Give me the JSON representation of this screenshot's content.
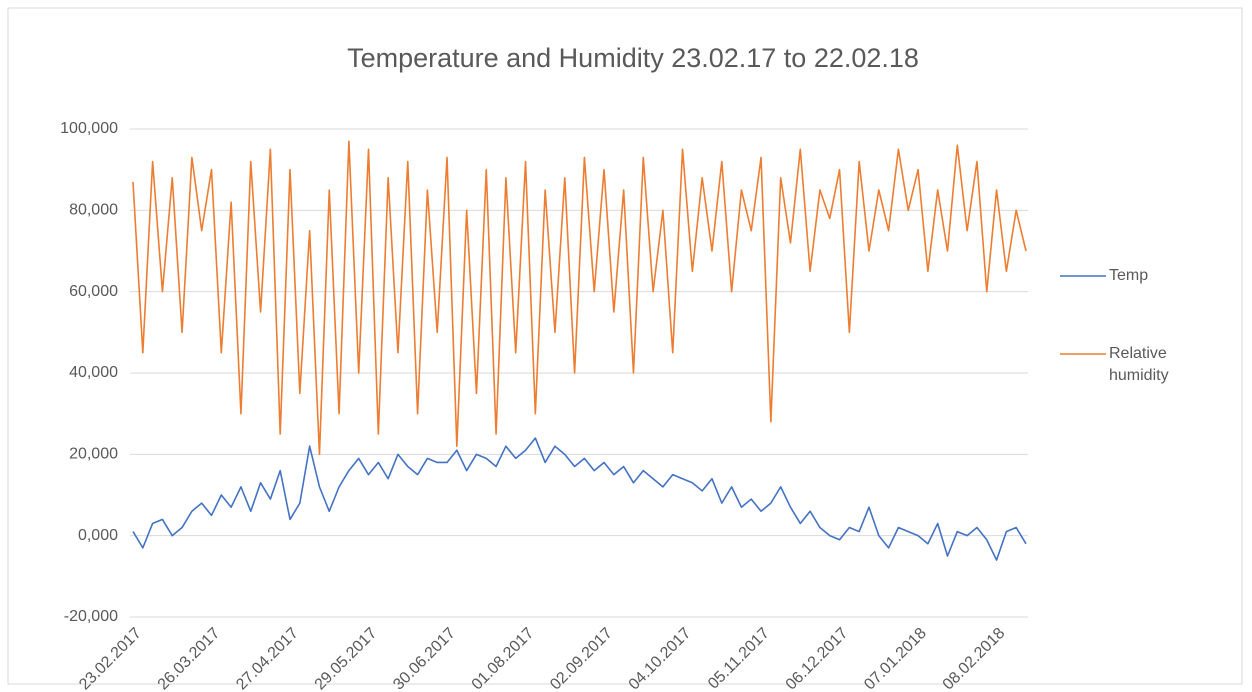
{
  "chart_data": {
    "type": "line",
    "title": "Temperature and Humidity 23.02.17 to 22.02.18",
    "categories": [
      "23.02.2017",
      null,
      null,
      null,
      null,
      null,
      null,
      null,
      "26.03.2017",
      null,
      null,
      null,
      null,
      null,
      null,
      null,
      "27.04.2017",
      null,
      null,
      null,
      null,
      null,
      null,
      null,
      "29.05.2017",
      null,
      null,
      null,
      null,
      null,
      null,
      null,
      "30.06.2017",
      null,
      null,
      null,
      null,
      null,
      null,
      null,
      "01.08.2017",
      null,
      null,
      null,
      null,
      null,
      null,
      null,
      "02.09.2017",
      null,
      null,
      null,
      null,
      null,
      null,
      null,
      "04.10.2017",
      null,
      null,
      null,
      null,
      null,
      null,
      null,
      "05.11.2017",
      null,
      null,
      null,
      null,
      null,
      null,
      null,
      "06.12.2017",
      null,
      null,
      null,
      null,
      null,
      null,
      null,
      "07.01.2018",
      null,
      null,
      null,
      null,
      null,
      null,
      null,
      "08.02.2018",
      null,
      null,
      null
    ],
    "series": [
      {
        "name": "Temp",
        "color": "#4472c4",
        "values": [
          1,
          -3,
          3,
          4,
          0,
          2,
          6,
          8,
          5,
          10,
          7,
          12,
          6,
          13,
          9,
          16,
          4,
          8,
          22,
          12,
          6,
          12,
          16,
          19,
          15,
          18,
          14,
          20,
          17,
          15,
          19,
          18,
          18,
          21,
          16,
          20,
          19,
          17,
          22,
          19,
          21,
          24,
          18,
          22,
          20,
          17,
          19,
          16,
          18,
          15,
          17,
          13,
          16,
          14,
          12,
          15,
          14,
          13,
          11,
          14,
          8,
          12,
          7,
          9,
          6,
          8,
          12,
          7,
          3,
          6,
          2,
          0,
          -1,
          2,
          1,
          7,
          0,
          -3,
          2,
          1,
          0,
          -2,
          3,
          -5,
          1,
          0,
          2,
          -1,
          -6,
          1,
          2,
          -2
        ]
      },
      {
        "name": "Relative humidity",
        "color": "#ed7d31",
        "values": [
          87,
          45,
          92,
          60,
          88,
          50,
          93,
          75,
          90,
          45,
          82,
          30,
          92,
          55,
          95,
          25,
          90,
          35,
          75,
          20,
          85,
          30,
          97,
          40,
          95,
          25,
          88,
          45,
          92,
          30,
          85,
          50,
          93,
          22,
          80,
          35,
          90,
          25,
          88,
          45,
          92,
          30,
          85,
          50,
          88,
          40,
          93,
          60,
          90,
          55,
          85,
          40,
          93,
          60,
          80,
          45,
          95,
          65,
          88,
          70,
          92,
          60,
          85,
          75,
          93,
          28,
          88,
          72,
          95,
          65,
          85,
          78,
          90,
          50,
          92,
          70,
          85,
          75,
          95,
          80,
          90,
          65,
          85,
          70,
          96,
          75,
          92,
          60,
          85,
          65,
          80,
          70
        ]
      }
    ],
    "ylim": [
      -20,
      100
    ],
    "yticks": [
      {
        "value": -20,
        "label": "-20,000"
      },
      {
        "value": 0,
        "label": "0,000"
      },
      {
        "value": 20,
        "label": "20,000"
      },
      {
        "value": 40,
        "label": "40,000"
      },
      {
        "value": 60,
        "label": "60,000"
      },
      {
        "value": 80,
        "label": "80,000"
      },
      {
        "value": 100,
        "label": "100,000"
      }
    ],
    "grid": true,
    "legend": "right"
  }
}
